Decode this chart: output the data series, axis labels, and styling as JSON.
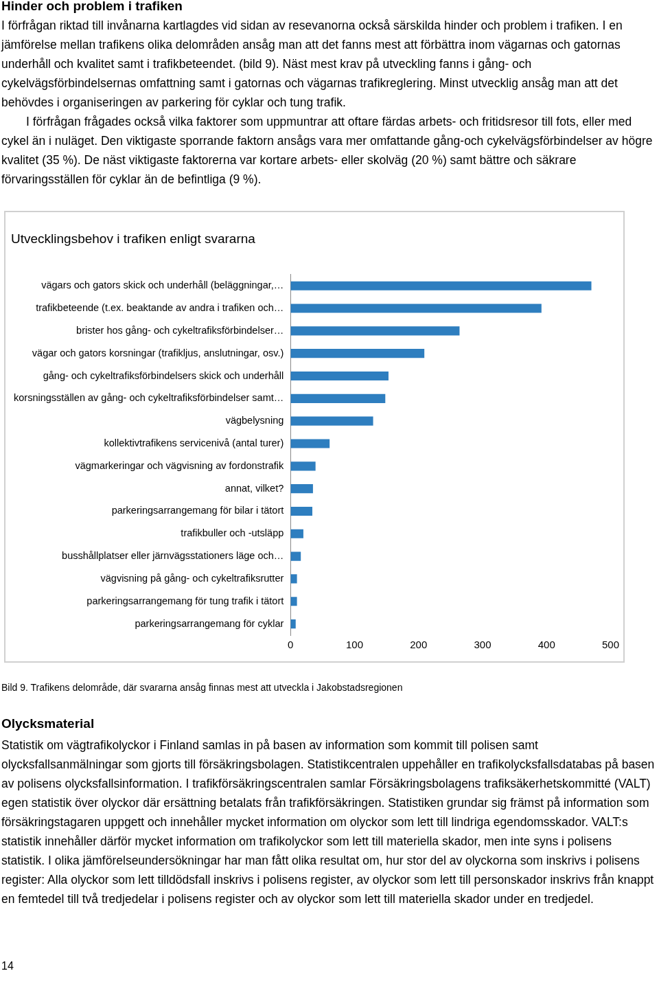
{
  "chart_data": {
    "type": "bar",
    "orientation": "horizontal",
    "title": "Utvecklingsbehov i trafiken enligt svararna",
    "categories": [
      "vägars och gators skick och underhåll (beläggningar,…",
      "trafikbeteende (t.ex. beaktande av andra i trafiken och…",
      "brister hos gång- och cykeltrafiksförbindelser…",
      "vägar och gators korsningar (trafikljus, anslutningar, osv.)",
      "gång- och cykeltrafiksförbindelsers skick och underhåll",
      "korsningsställen av gång- och cykeltrafiksförbindelser samt…",
      "vägbelysning",
      "kollektivtrafikens servicenivå (antal turer)",
      "vägmarkeringar och vägvisning av fordonstrafik",
      "annat, vilket?",
      "parkeringsarrangemang för bilar i tätort",
      "trafikbuller och -utsläpp",
      "busshållplatser eller järnvägsstationers läge och…",
      "vägvisning på gång- och cykeltrafiksrutter",
      "parkeringsarrangemang för tung trafik i tätort",
      "parkeringsarrangemang för cyklar"
    ],
    "values": [
      470,
      392,
      264,
      209,
      153,
      148,
      129,
      61,
      39,
      35,
      34,
      20,
      16,
      10,
      10,
      8
    ],
    "color": "#2e7ebf",
    "xlim": [
      0,
      500
    ],
    "xticks": [
      0,
      100,
      200,
      300,
      400,
      500
    ],
    "grid": false,
    "legend": false,
    "annotations": [
      "Hinder och problem i trafiken",
      "I förfrågan riktad till invånarna kartlagdes vid sidan av resevanorna också särskilda hinder och problem i trafiken. I en jämförelse mellan trafikens olika delområden ansåg man att det fanns mest att förbättra inom vägarnas och gatornas underhåll och kvalitet samt i trafikbeteendet. (bild 9). Näst mest krav på utveckling fanns i gång- och cykelvägsförbindelsernas omfattning samt i gatornas och vägarnas trafikreglering. Minst utvecklig ansåg man att det behövdes i organiseringen av parkering för cyklar och tung trafik.",
      "I förfrågan frågades också vilka faktorer som uppmuntrar att oftare färdas arbets- och fritidsresor till fots, eller med cykel än i nuläget. Den viktigaste sporrande faktorn ansågs vara mer omfattande gång-och cykelvägsförbindelser av högre kvalitet (35 %). De näst viktigaste faktorerna var kortare arbets- eller skolväg (20 %) samt bättre och säkrare förvaringsställen för cyklar än de befintliga (9 %).",
      "Bild 9. Trafikens delområde, där svararna ansåg finnas mest att utveckla i Jakobstadsregionen",
      "Olycksmaterial",
      "Statistik om vägtrafikolyckor i Finland samlas in på basen av information som kommit till polisen samt olycksfallsanmälningar som gjorts till försäkringsbolagen. Statistikcentralen uppehåller en trafikolycksfallsdatabas på basen av polisens olycksfallsinformation. I trafikförsäkringscentralen samlar Försäkringsbolagens trafiksäkerhetskommitté (VALT) egen statistik över olyckor där ersättning betalats från trafikförsäkringen. Statistiken grundar sig främst på information som försäkringstagaren uppgett och innehåller mycket information om olyckor som lett till lindriga egendomsskador. VALT:s statistik innehåller därför mycket information om trafikolyckor som lett till materiella skador, men inte syns i polisens statistik. I olika jämförelseundersökningar har man fått olika resultat om, hur stor del av olyckorna som inskrivs i polisens register: Alla olyckor som lett tilldödsfall inskrivs i polisens register, av olyckor som lett till personskador inskrivs från knappt en femtedel till två tredjedelar i polisens register och av olyckor som lett till materiella skador under en tredjedel.",
      "14"
    ]
  }
}
